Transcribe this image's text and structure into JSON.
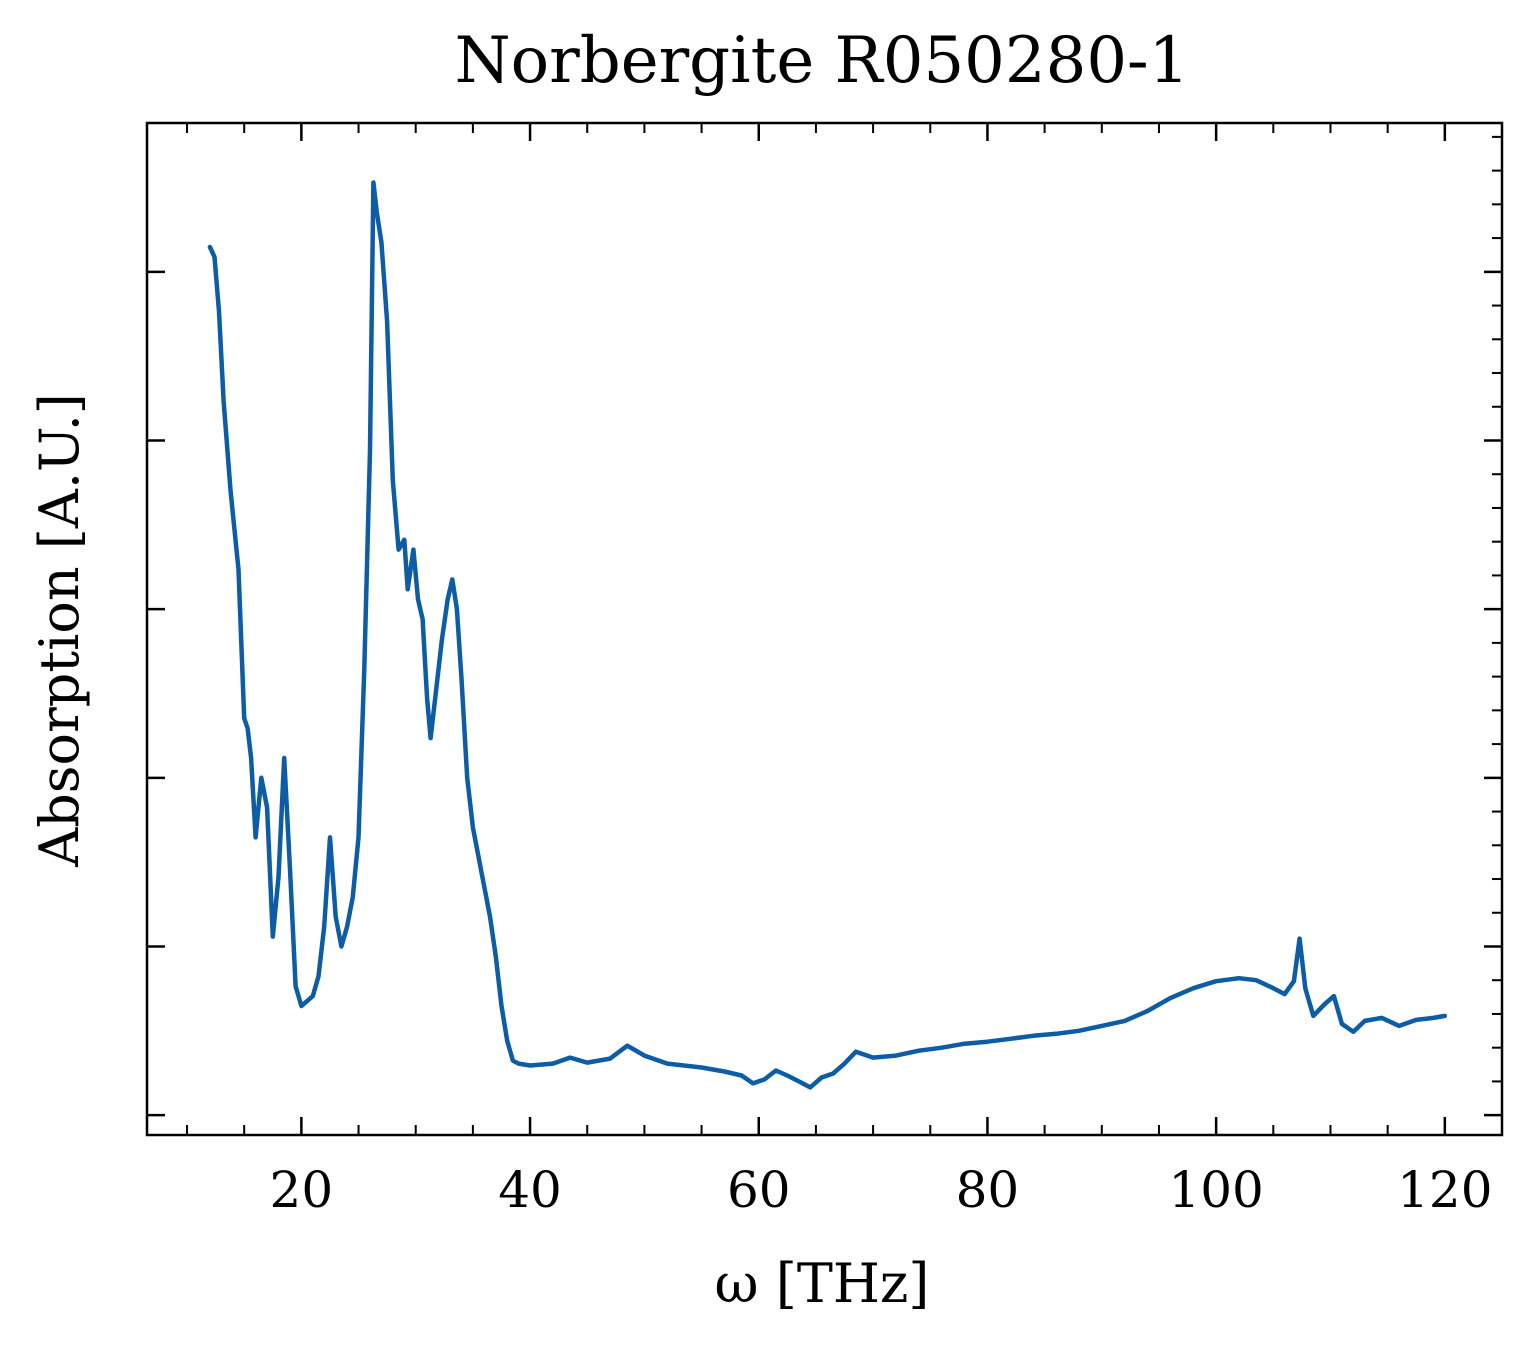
{
  "chart_data": {
    "type": "line",
    "title": "Norbergite R050280-1",
    "xlabel": "ω [THz]",
    "ylabel": "Absorption [A.U.]",
    "xlim": [
      6.5,
      125
    ],
    "ylim": [
      -0.02,
      1.0
    ],
    "xticks": [
      20,
      40,
      60,
      80,
      100,
      120
    ],
    "xtick_labels": [
      "20",
      "40",
      "60",
      "80",
      "100",
      "120"
    ],
    "yticks": [
      0.0,
      0.17,
      0.34,
      0.51,
      0.68,
      0.85
    ],
    "ytick_labels_visible": false,
    "grid": false,
    "line_color": "#0c5da5",
    "series": [
      {
        "x": [
          12.0,
          12.4,
          12.8,
          13.2,
          13.8,
          14.5,
          15.0,
          15.3,
          15.6,
          16.0,
          16.5,
          17.0,
          17.5,
          18.0,
          18.5,
          19.0,
          19.5,
          20.0,
          20.5,
          21.0,
          21.5,
          22.0,
          22.5,
          23.0,
          23.5,
          24.0,
          24.5,
          25.0,
          25.5,
          26.0,
          26.3,
          26.6,
          27.0,
          27.5,
          28.0,
          28.5,
          29.0,
          29.3,
          29.8,
          30.2,
          30.6,
          31.0,
          31.3,
          31.8,
          32.3,
          32.8,
          33.2,
          33.6,
          34.0,
          34.5,
          35.0,
          35.5,
          36.0,
          36.5,
          37.0,
          37.5,
          38.0,
          38.5,
          39.0,
          40.0,
          42.0,
          43.5,
          45.0,
          47.0,
          48.5,
          50.0,
          52.0,
          55.0,
          57.0,
          58.5,
          59.5,
          60.5,
          61.5,
          62.5,
          63.5,
          64.5,
          65.5,
          66.5,
          67.5,
          68.5,
          70.0,
          72.0,
          74.0,
          76.0,
          78.0,
          80.0,
          82.0,
          84.0,
          86.0,
          88.0,
          90.0,
          92.0,
          94.0,
          96.0,
          98.0,
          100.0,
          102.0,
          103.5,
          105.0,
          106.0,
          106.8,
          107.3,
          107.8,
          108.5,
          109.5,
          110.3,
          111.0,
          112.0,
          113.0,
          114.5,
          116.0,
          117.5,
          119.0,
          120.0
        ],
        "y": [
          0.875,
          0.865,
          0.81,
          0.72,
          0.63,
          0.55,
          0.4,
          0.39,
          0.36,
          0.28,
          0.34,
          0.31,
          0.18,
          0.24,
          0.36,
          0.25,
          0.13,
          0.11,
          0.115,
          0.12,
          0.14,
          0.19,
          0.28,
          0.2,
          0.17,
          0.19,
          0.22,
          0.28,
          0.45,
          0.67,
          0.94,
          0.91,
          0.88,
          0.8,
          0.64,
          0.57,
          0.58,
          0.53,
          0.57,
          0.52,
          0.5,
          0.42,
          0.38,
          0.43,
          0.48,
          0.52,
          0.54,
          0.51,
          0.44,
          0.34,
          0.29,
          0.26,
          0.23,
          0.2,
          0.16,
          0.11,
          0.075,
          0.055,
          0.052,
          0.05,
          0.052,
          0.058,
          0.053,
          0.057,
          0.07,
          0.06,
          0.052,
          0.048,
          0.044,
          0.04,
          0.032,
          0.036,
          0.045,
          0.04,
          0.034,
          0.028,
          0.038,
          0.042,
          0.052,
          0.064,
          0.058,
          0.06,
          0.065,
          0.068,
          0.072,
          0.074,
          0.077,
          0.08,
          0.082,
          0.085,
          0.09,
          0.095,
          0.105,
          0.118,
          0.128,
          0.135,
          0.138,
          0.136,
          0.128,
          0.122,
          0.135,
          0.178,
          0.128,
          0.1,
          0.112,
          0.12,
          0.092,
          0.084,
          0.095,
          0.098,
          0.09,
          0.096,
          0.098,
          0.1
        ]
      }
    ]
  }
}
